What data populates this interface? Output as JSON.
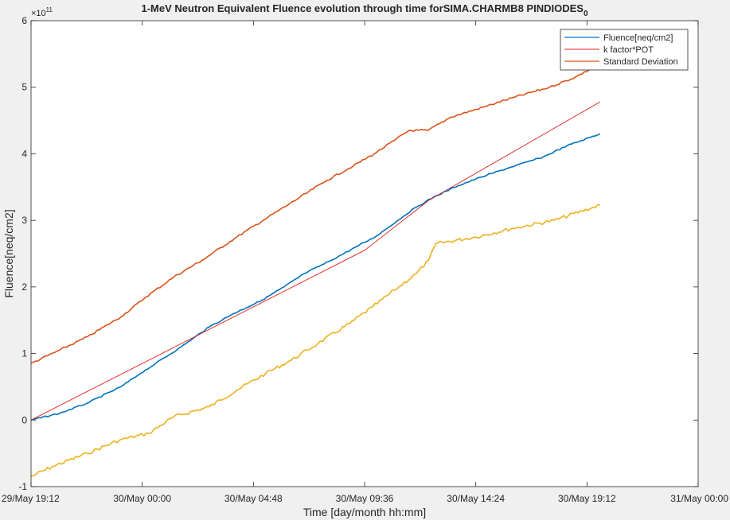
{
  "chart_data": {
    "type": "line",
    "title": "1-MeV Neutron Equivalent Fluence evolution through time forSIMA.CHARMB8 PINDIODES",
    "title_subscript": "0",
    "xlabel": "Time [day/month hh:mm]",
    "ylabel": "Fluence[neq/cm2]",
    "y_exponent_label": "×10",
    "y_exponent": "11",
    "ylim": [
      -1,
      6
    ],
    "xlim": [
      "29/May 19:12",
      "31/May 00:00"
    ],
    "x_ticks": [
      "29/May 19:12",
      "30/May 00:00",
      "30/May 04:48",
      "30/May 09:36",
      "30/May 14:24",
      "30/May 19:12",
      "31/May 00:00"
    ],
    "y_ticks": [
      "-1",
      "0",
      "1",
      "2",
      "3",
      "4",
      "5",
      "6"
    ],
    "legend_position": "top-right",
    "grid": false,
    "series": [
      {
        "name": "Fluence[neq/cm2]",
        "color": "#0072bd",
        "x": [
          "29/May 19:12",
          "29/May 20:26",
          "29/May 21:36",
          "29/May 23:05",
          "29/May 23:55",
          "30/May 00:35",
          "30/May 01:41",
          "30/May 02:54",
          "30/May 03:57",
          "30/May 05:10",
          "30/May 06:07",
          "30/May 07:00",
          "30/May 08:03",
          "30/May 09:20",
          "30/May 10:03",
          "30/May 11:14",
          "30/May 11:50",
          "30/May 12:35",
          "30/May 13:38",
          "30/May 14:38",
          "30/May 15:55",
          "30/May 17:18",
          "30/May 18:20",
          "30/May 19:46"
        ],
        "values": [
          0,
          0.1,
          0.25,
          0.5,
          0.7,
          0.85,
          1.1,
          1.4,
          1.6,
          1.8,
          2.0,
          2.2,
          2.38,
          2.62,
          2.75,
          3.05,
          3.2,
          3.35,
          3.52,
          3.65,
          3.8,
          3.95,
          4.12,
          4.3
        ]
      },
      {
        "name": "k factor*POT",
        "color": "#e11a1a",
        "x": [
          "29/May 19:12",
          "30/May 09:36",
          "30/May 12:22",
          "30/May 19:46"
        ],
        "values": [
          0,
          2.55,
          3.3,
          4.78
        ]
      },
      {
        "name": "Standard Deviation",
        "color": "#d95319",
        "x": [
          "29/May 19:12",
          "29/May 20:26",
          "29/May 21:38",
          "29/May 23:05",
          "30/May 00:10",
          "30/May 01:22",
          "30/May 02:35",
          "30/May 04:05",
          "30/May 05:13",
          "30/May 06:22",
          "30/May 07:58",
          "30/May 09:07",
          "30/May 10:01",
          "30/May 10:53",
          "30/May 11:31",
          "30/May 12:20",
          "30/May 13:19",
          "30/May 14:43",
          "30/May 16:04",
          "30/May 17:35",
          "30/May 18:41",
          "30/May 19:46"
        ],
        "values": [
          0.85,
          1.05,
          1.25,
          1.55,
          1.85,
          2.15,
          2.4,
          2.75,
          3.0,
          3.25,
          3.6,
          3.82,
          4.0,
          4.2,
          4.35,
          4.35,
          4.55,
          4.7,
          4.85,
          5.0,
          5.15,
          5.35
        ]
      },
      {
        "name": "",
        "color": "#edb120",
        "x": [
          "29/May 19:12",
          "29/May 20:07",
          "29/May 21:38",
          "29/May 23:01",
          "30/May 00:17",
          "30/May 01:22",
          "30/May 02:54",
          "30/May 04:05",
          "30/May 05:20",
          "30/May 06:26",
          "30/May 07:35",
          "30/May 08:57",
          "30/May 09:57",
          "30/May 10:53",
          "30/May 11:50",
          "30/May 12:22",
          "30/May 12:41",
          "30/May 14:24",
          "30/May 16:00",
          "30/May 17:47",
          "30/May 19:46"
        ],
        "values": [
          -0.85,
          -0.7,
          -0.5,
          -0.3,
          -0.2,
          0.05,
          0.2,
          0.45,
          0.7,
          0.9,
          1.15,
          1.45,
          1.7,
          1.95,
          2.2,
          2.4,
          2.65,
          2.75,
          2.88,
          3.0,
          3.23
        ]
      }
    ]
  }
}
